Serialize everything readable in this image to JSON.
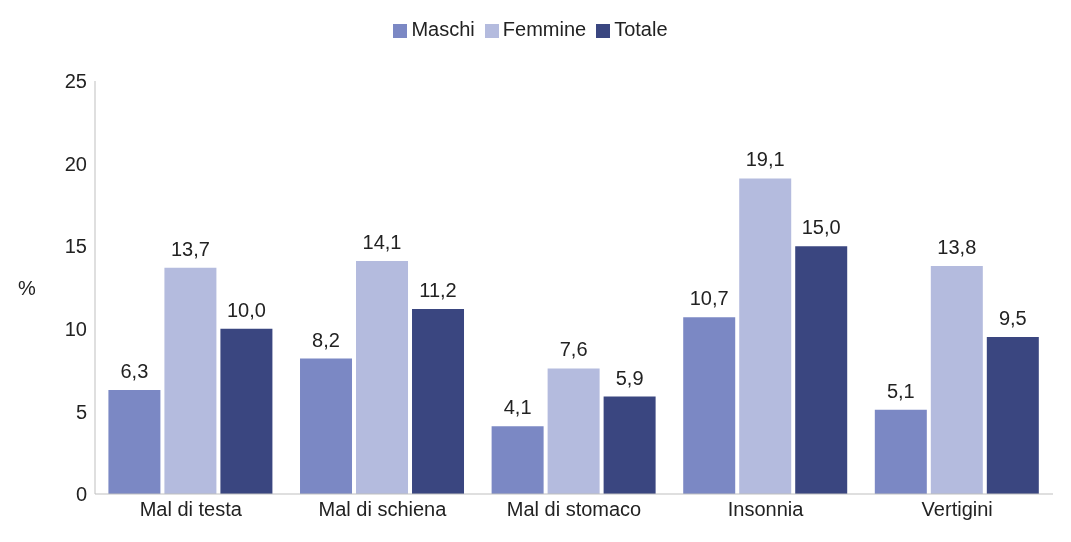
{
  "chart_data": {
    "type": "bar",
    "ylabel": "%",
    "categories": [
      "Mal di testa",
      "Mal di schiena",
      "Mal di stomaco",
      "Insonnia",
      "Vertigini"
    ],
    "series": [
      {
        "name": "Maschi",
        "color": "#7b88c4",
        "values": [
          6.3,
          8.2,
          4.1,
          10.7,
          5.1
        ],
        "value_labels": [
          "6,3",
          "8,2",
          "4,1",
          "10,7",
          "5,1"
        ]
      },
      {
        "name": "Femmine",
        "color": "#b4bbde",
        "values": [
          13.7,
          14.1,
          7.6,
          19.1,
          13.8
        ],
        "value_labels": [
          "13,7",
          "14,1",
          "7,6",
          "19,1",
          "13,8"
        ]
      },
      {
        "name": "Totale",
        "color": "#3a4680",
        "values": [
          10.0,
          11.2,
          5.9,
          15.0,
          9.5
        ],
        "value_labels": [
          "10,0",
          "11,2",
          "5,9",
          "15,0",
          "9,5"
        ]
      }
    ],
    "ylim": [
      0,
      25
    ],
    "yticks": [
      0,
      5,
      10,
      15,
      20,
      25
    ],
    "grid": false,
    "legend": "top"
  }
}
